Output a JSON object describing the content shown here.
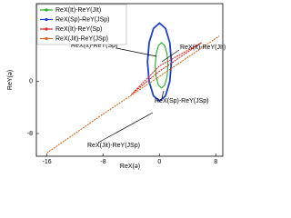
{
  "chart_data": {
    "type": "line",
    "x_label": "ReX(ə)",
    "y_label": "ReY(ə)",
    "xlim": [
      -17.5,
      9
    ],
    "ylim": [
      -11.5,
      12
    ],
    "xticks": [
      -16,
      -8,
      0,
      8
    ],
    "yticks": [
      -8,
      0
    ],
    "legend": "upper left",
    "series": [
      {
        "name": "ReX(It)-ReY(JIt)",
        "color": "#22b022",
        "x": [
          1.2,
          1.08,
          0.75,
          0.3,
          -0.15,
          -0.48,
          -0.6,
          -0.48,
          -0.15,
          0.3,
          0.75,
          1.08,
          1.2
        ],
        "values": [
          2.5,
          4.25,
          5.53,
          6,
          5.53,
          4.25,
          2.5,
          0.75,
          -0.53,
          -1,
          -0.53,
          0.75,
          2.5
        ]
      },
      {
        "name": "ReX(Sp)-ReY(JSp)",
        "color": "#1f3fcf",
        "x": [
          1.7,
          1.47,
          0.85,
          0,
          -0.85,
          -1.47,
          -1.7,
          -1.47,
          -0.85,
          0,
          0.85,
          1.47,
          1.7
        ],
        "values": [
          3,
          6,
          8.2,
          9,
          8.2,
          6,
          3,
          0,
          -2.2,
          -3,
          -2.2,
          0,
          3
        ]
      },
      {
        "name": "ReX(It)-ReY(Sp)",
        "color": "#e02020",
        "x": [
          -4,
          0,
          6,
          0,
          -4
        ],
        "values": [
          -2,
          1.6,
          6,
          2.4,
          -2
        ]
      },
      {
        "name": "ReX(Jit)-ReY(JSp)",
        "color": "#d2691e",
        "x": [
          -16,
          -8,
          0,
          8.5
        ],
        "values": [
          -11,
          -5,
          0.8,
          7
        ]
      }
    ],
    "annotations": [
      "ReX(It)-ReY(Sp)",
      "ReX(It)-ReY(JIt)",
      "ReX(Sp)-ReY(JSp)",
      "ReX(Jit)-ReY(JSp)"
    ]
  }
}
